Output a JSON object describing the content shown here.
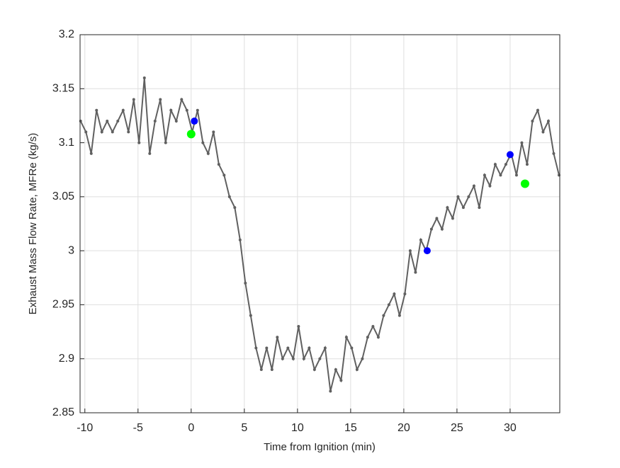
{
  "chart_data": {
    "type": "line",
    "x_label": "Time from Ignition (min)",
    "y_label": "Exhaust Mass Flow Rate, MFRe (kg/s)",
    "xlim": [
      -10.45,
      34.67
    ],
    "ylim": [
      2.85,
      3.2
    ],
    "xticks": [
      -10,
      -5,
      0,
      5,
      10,
      15,
      20,
      25,
      30
    ],
    "yticks": [
      2.85,
      2.9,
      2.95,
      3,
      3.05,
      3.1,
      3.15,
      3.2
    ],
    "grid": true,
    "series": [
      {
        "mode": "line",
        "color": "#606060",
        "x": [
          -10.4,
          -9.9,
          -9.4,
          -8.9,
          -8.4,
          -7.9,
          -7.4,
          -6.9,
          -6.4,
          -5.9,
          -5.4,
          -4.9,
          -4.4,
          -3.9,
          -3.4,
          -2.9,
          -2.4,
          -1.9,
          -1.4,
          -0.9,
          -0.4,
          0.1,
          0.6,
          1.1,
          1.6,
          2.1,
          2.6,
          3.1,
          3.6,
          4.1,
          4.6,
          5.1,
          5.6,
          6.1,
          6.6,
          7.1,
          7.6,
          8.1,
          8.6,
          9.1,
          9.6,
          10.1,
          10.6,
          11.1,
          11.6,
          12.1,
          12.6,
          13.1,
          13.6,
          14.1,
          14.6,
          15.1,
          15.6,
          16.1,
          16.6,
          17.1,
          17.6,
          18.1,
          18.6,
          19.1,
          19.6,
          20.1,
          20.6,
          21.1,
          21.6,
          22.1,
          22.6,
          23.1,
          23.6,
          24.1,
          24.6,
          25.1,
          25.6,
          26.1,
          26.6,
          27.1,
          27.6,
          28.1,
          28.6,
          29.1,
          29.6,
          30.1,
          30.6,
          31.1,
          31.6,
          32.1,
          32.6,
          33.1,
          33.6,
          34.1,
          34.6
        ],
        "values": [
          3.12,
          3.11,
          3.09,
          3.13,
          3.11,
          3.12,
          3.11,
          3.12,
          3.13,
          3.11,
          3.14,
          3.1,
          3.16,
          3.09,
          3.12,
          3.14,
          3.1,
          3.13,
          3.12,
          3.14,
          3.13,
          3.11,
          3.13,
          3.1,
          3.09,
          3.11,
          3.08,
          3.07,
          3.05,
          3.04,
          3.01,
          2.97,
          2.94,
          2.91,
          2.89,
          2.91,
          2.89,
          2.92,
          2.9,
          2.91,
          2.9,
          2.93,
          2.9,
          2.91,
          2.89,
          2.9,
          2.91,
          2.87,
          2.89,
          2.88,
          2.92,
          2.91,
          2.89,
          2.9,
          2.92,
          2.93,
          2.92,
          2.94,
          2.95,
          2.96,
          2.94,
          2.96,
          3.0,
          2.98,
          3.01,
          3.0,
          3.02,
          3.03,
          3.02,
          3.04,
          3.03,
          3.05,
          3.04,
          3.05,
          3.06,
          3.04,
          3.07,
          3.06,
          3.08,
          3.07,
          3.08,
          3.09,
          3.07,
          3.1,
          3.08,
          3.12,
          3.13,
          3.11,
          3.12,
          3.09,
          3.07
        ]
      },
      {
        "mode": "markers",
        "color": "#0000ff",
        "x": [
          0.3,
          22.2,
          30.0
        ],
        "values": [
          3.12,
          3.0,
          3.089
        ]
      },
      {
        "mode": "markers",
        "color": "#00ff00",
        "x": [
          0.0,
          31.4
        ],
        "values": [
          3.108,
          3.062
        ]
      }
    ]
  }
}
